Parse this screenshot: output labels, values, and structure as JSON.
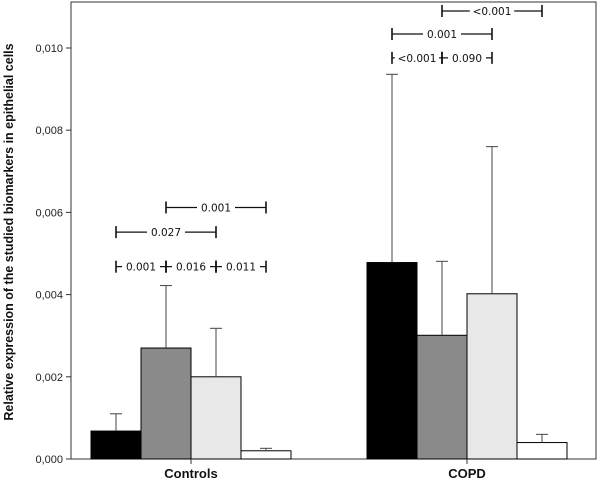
{
  "chart_data": {
    "type": "bar",
    "ylabel": "Relative expression of the studied biomarkers in epithelial cells",
    "xlabel": "",
    "categories": [
      "Controls",
      "COPD"
    ],
    "ylim": [
      0,
      0.0108
    ],
    "yticks": [
      0.0,
      0.002,
      0.004,
      0.006,
      0.008,
      0.01
    ],
    "ytick_labels": [
      "0,000",
      "0,002",
      "0,004",
      "0,006",
      "0,008",
      "0,010"
    ],
    "grid": false,
    "series": [
      {
        "color": "#000000",
        "values": [
          0.00068,
          0.00478
        ],
        "error_upper": [
          0.0011,
          0.00936
        ]
      },
      {
        "color": "#8a8a8a",
        "values": [
          0.0027,
          0.00301
        ],
        "error_upper": [
          0.00422,
          0.00481
        ]
      },
      {
        "color": "#e8e8e8",
        "values": [
          0.002,
          0.00402
        ],
        "error_upper": [
          0.00318,
          0.0076
        ]
      },
      {
        "color": "#ffffff",
        "values": [
          0.0002,
          0.0004
        ],
        "error_upper": [
          0.00026,
          0.0006
        ]
      }
    ],
    "comparisons": [
      {
        "category": 0,
        "from": 0,
        "to": 1,
        "label": "0.001",
        "y": 0.00468
      },
      {
        "category": 0,
        "from": 1,
        "to": 2,
        "label": "0.016",
        "y": 0.00468
      },
      {
        "category": 0,
        "from": 2,
        "to": 3,
        "label": "0.011",
        "y": 0.00468
      },
      {
        "category": 0,
        "from": 0,
        "to": 2,
        "label": "0.027",
        "y": 0.00552
      },
      {
        "category": 0,
        "from": 1,
        "to": 3,
        "label": "0.001",
        "y": 0.00612
      },
      {
        "category": 1,
        "from": 0,
        "to": 1,
        "label": "<0.001",
        "y": 0.00976
      },
      {
        "category": 1,
        "from": 1,
        "to": 2,
        "label": "0.090",
        "y": 0.00976
      },
      {
        "category": 1,
        "from": 0,
        "to": 2,
        "label": "0.001",
        "y": 0.01034
      },
      {
        "category": 1,
        "from": 1,
        "to": 3,
        "label": "<0.001",
        "y": 0.0109
      }
    ]
  }
}
